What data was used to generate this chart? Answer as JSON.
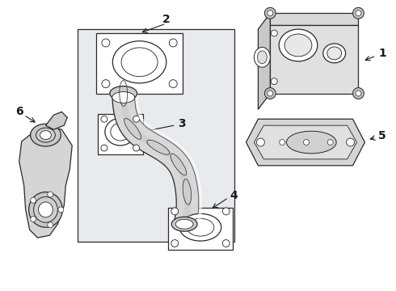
{
  "background_color": "#ffffff",
  "line_color": "#2a2a2a",
  "box_fill": "#e8eaed",
  "fig_width": 4.9,
  "fig_height": 3.6,
  "dpi": 100,
  "label_fontsize": 10,
  "label_color": "#1a1a1a"
}
